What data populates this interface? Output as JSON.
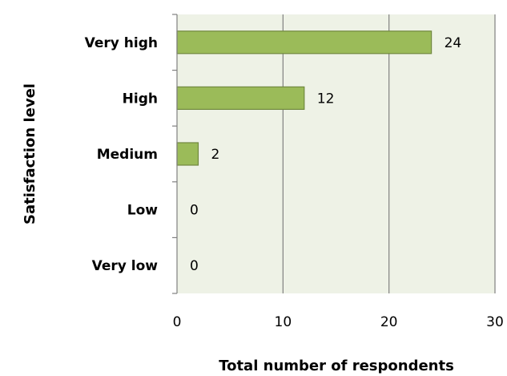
{
  "chart_data": {
    "type": "bar",
    "orientation": "horizontal",
    "categories": [
      "Very high",
      "High",
      "Medium",
      "Low",
      "Very low"
    ],
    "values": [
      24,
      12,
      2,
      0,
      0
    ],
    "data_labels": [
      "24",
      "12",
      "2",
      "0",
      "0"
    ],
    "xlabel": "Total number of respondents",
    "ylabel": "Satisfaction level",
    "xlim": [
      0,
      30
    ],
    "x_ticks": [
      0,
      10,
      20,
      30
    ],
    "x_tick_labels": [
      "0",
      "10",
      "20",
      "30"
    ],
    "grid": true,
    "legend": "none",
    "colors": {
      "bar_fill": "#9bbb59",
      "bar_stroke": "#71893f",
      "plot_background": "#eef2e6",
      "grid": "#808080"
    }
  }
}
